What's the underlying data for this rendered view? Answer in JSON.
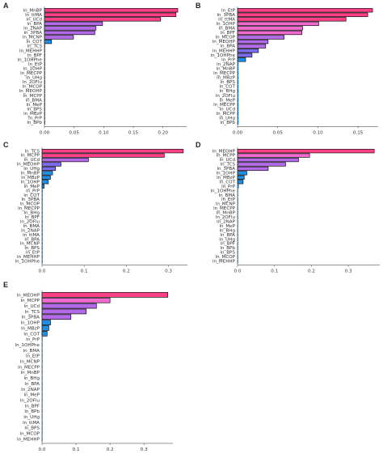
{
  "colors": {
    "high": "#ff3f86",
    "mid_high": "#f06ad0",
    "mid": "#b36ae8",
    "mid_low": "#7b6cf0",
    "low": "#1e8fe6",
    "edge": "#111111",
    "axis": "#555555"
  },
  "chart_data": [
    {
      "type": "bar",
      "orientation": "horizontal",
      "panel": "A",
      "categories": [
        "ln_MnBP",
        "ln_ttMA",
        "ln_UCd",
        "ln_BPA",
        "ln_2NAP",
        "ln_3PBA",
        "ln_MCNP",
        "ln_COT",
        "ln_TCS",
        "ln_MEHHP",
        "ln_BPF",
        "ln_1OHPhe",
        "ln_EtP",
        "ln_1OHP",
        "ln_MECPP",
        "ln_UHg",
        "ln_2OFlu",
        "ln_MCOP",
        "ln_MEOHP",
        "ln_MCPP",
        "ln_BMA",
        "ln_MeP",
        "ln_BPS",
        "ln_MBzP",
        "ln_PrP",
        "ln_BPb"
      ],
      "values": [
        0.225,
        0.222,
        0.196,
        0.098,
        0.087,
        0.085,
        0.049,
        0.012,
        0.001,
        0.001,
        0.001,
        0.001,
        0.001,
        0.001,
        0.001,
        0.001,
        0.001,
        0.001,
        0.001,
        0.001,
        0.001,
        0.001,
        0.001,
        0.001,
        0.001,
        0.001
      ],
      "xlim": [
        0,
        0.24
      ],
      "xticks": [
        "0.00",
        "0.05",
        "0.10",
        "0.15",
        "0.20"
      ],
      "tick_values": [
        0,
        0.05,
        0.1,
        0.15,
        0.2
      ]
    },
    {
      "type": "bar",
      "orientation": "horizontal",
      "panel": "B",
      "categories": [
        "ln_EtP",
        "ln_3PBA",
        "ln_ttMA",
        "ln_1OHP",
        "ln_BMA",
        "ln_BPF",
        "ln_MCOP",
        "ln_MEOHP",
        "ln_BPA",
        "ln_MEHHP",
        "ln_1OHPhe",
        "ln_PrP",
        "ln_2NAP",
        "ln_MnBP",
        "ln_MECPP",
        "ln_MBzP",
        "ln_BPS",
        "ln_COT",
        "ln_BHg",
        "ln_2OFlu",
        "ln_MeP",
        "ln_MECPP",
        "ln_UCd",
        "ln_MCPP",
        "ln_UHg",
        "ln_BPb"
      ],
      "values": [
        0.168,
        0.162,
        0.135,
        0.101,
        0.081,
        0.08,
        0.058,
        0.038,
        0.035,
        0.026,
        0.018,
        0.01,
        0.001,
        0.001,
        0.001,
        0.001,
        0.001,
        0.001,
        0.001,
        0.001,
        0.001,
        0.001,
        0.001,
        0.001,
        0.001,
        0.001
      ],
      "xlim": [
        0,
        0.175
      ],
      "xticks": [
        "0.00",
        "0.05",
        "0.10",
        "0.15"
      ],
      "tick_values": [
        0,
        0.05,
        0.1,
        0.15
      ]
    },
    {
      "type": "bar",
      "orientation": "horizontal",
      "panel": "C",
      "categories": [
        "ln_TCS",
        "ln_MCPP",
        "ln_UCd",
        "ln_MEOHP",
        "ln_UHg",
        "ln_MnBP",
        "ln_MBzP",
        "ln_1OHP",
        "ln_MeP",
        "ln_PrP",
        "ln_COT",
        "ln_3PBA",
        "ln_MCOP",
        "ln_MECPP",
        "ln_BHg",
        "ln_BPF",
        "ln_2OFlu",
        "ln_BMA",
        "ln_2NAP",
        "ln_ttMA",
        "ln_BPA",
        "ln_MCNP",
        "ln_BPS",
        "ln_EtP",
        "ln_MEHHP",
        "ln_1OHPhe"
      ],
      "values": [
        0.335,
        0.29,
        0.11,
        0.045,
        0.032,
        0.025,
        0.02,
        0.015,
        0.005,
        0.001,
        0.001,
        0.001,
        0.001,
        0.001,
        0.001,
        0.001,
        0.001,
        0.001,
        0.001,
        0.001,
        0.001,
        0.001,
        0.001,
        0.001,
        0.001,
        0.001
      ],
      "xlim": [
        0,
        0.345
      ],
      "xticks": [
        "0.0",
        "0.1",
        "0.2",
        "0.3"
      ],
      "tick_values": [
        0,
        0.1,
        0.2,
        0.3
      ]
    },
    {
      "type": "bar",
      "orientation": "horizontal",
      "panel": "D",
      "categories": [
        "ln_MEOHP",
        "ln_MCPP",
        "ln_UCd",
        "ln_TCS",
        "ln_3PBA",
        "ln_1OHP",
        "ln_MBzP",
        "ln_COT",
        "ln_PrP",
        "ln_1OHPhe",
        "ln_BMA",
        "ln_EtP",
        "ln_MCNP",
        "ln_MECPP",
        "ln_MnBP",
        "ln_2OFlu",
        "ln_2NAP",
        "ln_MeP",
        "ln_BHg",
        "ln_BPA",
        "ln_UHg",
        "ln_BPF",
        "ln_BPb",
        "ln_BPS",
        "ln_MCOP",
        "ln_MEHHP"
      ],
      "values": [
        0.37,
        0.195,
        0.165,
        0.13,
        0.083,
        0.025,
        0.018,
        0.015,
        0.003,
        0.001,
        0.001,
        0.001,
        0.001,
        0.001,
        0.001,
        0.001,
        0.001,
        0.001,
        0.001,
        0.001,
        0.001,
        0.001,
        0.001,
        0.001,
        0.001,
        0.001
      ],
      "xlim": [
        0,
        0.385
      ],
      "xticks": [
        "0.0",
        "0.1",
        "0.2",
        "0.3"
      ],
      "tick_values": [
        0,
        0.1,
        0.2,
        0.3
      ]
    },
    {
      "type": "bar",
      "orientation": "horizontal",
      "panel": "E",
      "categories": [
        "ln_MEOHP",
        "ln_MCPP",
        "ln_UCd",
        "ln_TCS",
        "ln_3PBA",
        "ln_1OHP",
        "ln_MBzP",
        "ln_COT",
        "ln_PrP",
        "ln_1OHPhe",
        "ln_BMA",
        "ln_EtP",
        "ln_MCNP",
        "ln_MECPP",
        "ln_MnBP",
        "ln_BHg",
        "ln_BPA",
        "ln_2NAP",
        "ln_MeP",
        "ln_2OFlu",
        "ln_BPF",
        "ln_BPb",
        "ln_UHg",
        "ln_ttMA",
        "ln_BPS",
        "ln_MCOP",
        "ln_MEHHP"
      ],
      "values": [
        0.37,
        0.2,
        0.16,
        0.13,
        0.085,
        0.025,
        0.02,
        0.015,
        0.001,
        0.001,
        0.001,
        0.001,
        0.001,
        0.001,
        0.001,
        0.001,
        0.001,
        0.001,
        0.001,
        0.001,
        0.001,
        0.001,
        0.001,
        0.001,
        0.001,
        0.001,
        0.001
      ],
      "xlim": [
        0,
        0.385
      ],
      "xticks": [
        "0.0",
        "0.1",
        "0.2",
        "0.3"
      ],
      "tick_values": [
        0,
        0.1,
        0.2,
        0.3
      ]
    }
  ]
}
